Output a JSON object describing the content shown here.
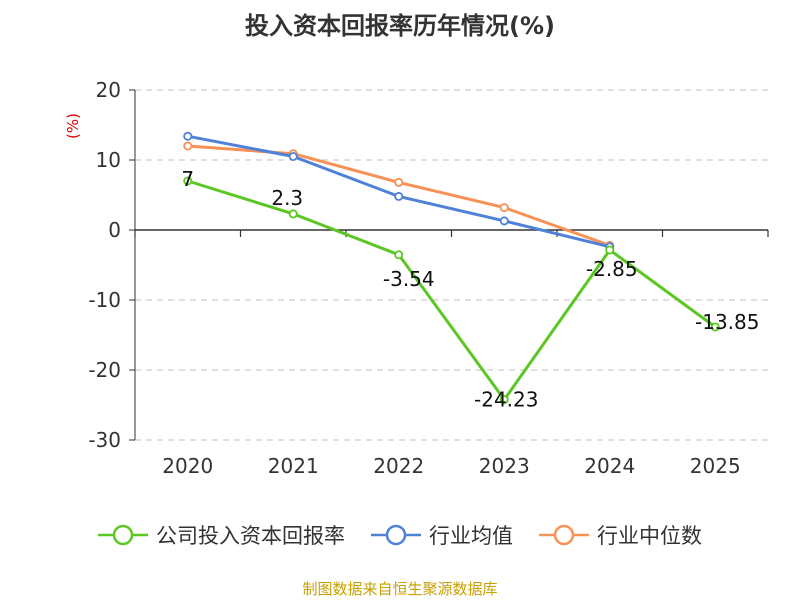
{
  "chart_data": {
    "type": "line",
    "title": "投入资本回报率历年情况(%)",
    "ylabel": "(%)",
    "categories": [
      "2020",
      "2021",
      "2022",
      "2023",
      "2024",
      "2025"
    ],
    "ylim": [
      -30,
      20
    ],
    "yticks": [
      "20",
      "10",
      "0",
      "-10",
      "-20",
      "-30"
    ],
    "grid": true,
    "legend_position": "bottom",
    "series": [
      {
        "name": "公司投入资本回报率",
        "color": "#5cc623",
        "values": [
          7,
          2.3,
          -3.54,
          -24.23,
          -2.85,
          -13.85
        ],
        "labels": [
          "7",
          "2.3",
          "-3.54",
          "-24.23",
          "-2.85",
          "-13.85"
        ]
      },
      {
        "name": "行业均值",
        "color": "#4f81d9",
        "values": [
          13.4,
          10.5,
          4.8,
          1.3,
          -2.4,
          null
        ]
      },
      {
        "name": "行业中位数",
        "color": "#f79155",
        "values": [
          12.0,
          10.9,
          6.8,
          3.2,
          -2.2,
          null
        ]
      }
    ]
  },
  "source": "制图数据来自恒生聚源数据库"
}
